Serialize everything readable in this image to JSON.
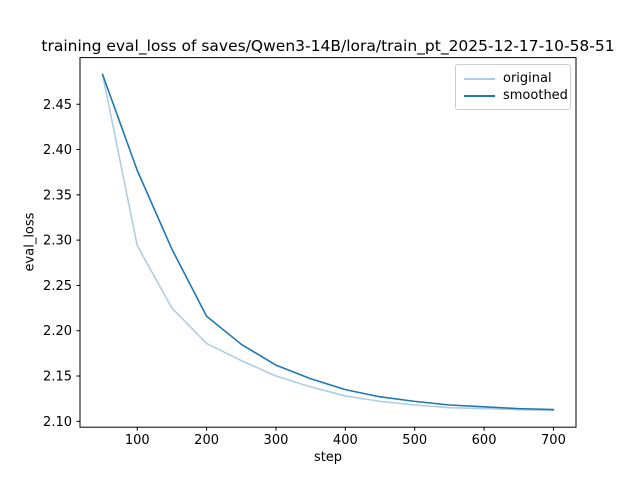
{
  "chart_data": {
    "type": "line",
    "title": "training eval_loss of saves/Qwen3-14B/lora/train_pt_2025-12-17-10-58-51",
    "xlabel": "step",
    "ylabel": "eval_loss",
    "x": [
      50,
      100,
      150,
      200,
      250,
      300,
      350,
      400,
      450,
      500,
      550,
      600,
      650,
      700
    ],
    "series": [
      {
        "name": "original",
        "color": "#aecde6",
        "values": [
          2.483,
          2.294,
          2.225,
          2.186,
          2.167,
          2.15,
          2.138,
          2.128,
          2.122,
          2.118,
          2.115,
          2.114,
          2.113,
          2.112
        ]
      },
      {
        "name": "smoothed",
        "color": "#1f77b4",
        "values": [
          2.483,
          2.377,
          2.29,
          2.216,
          2.185,
          2.162,
          2.147,
          2.135,
          2.127,
          2.122,
          2.118,
          2.116,
          2.114,
          2.113
        ]
      }
    ],
    "xlim": [
      17.5,
      732.5
    ],
    "ylim": [
      2.0935,
      2.5015
    ],
    "xticks": [
      100,
      200,
      300,
      400,
      500,
      600,
      700
    ],
    "yticks": [
      2.1,
      2.15,
      2.2,
      2.25,
      2.3,
      2.35,
      2.4,
      2.45
    ],
    "grid": false,
    "legend_position": "upper right",
    "axis_color": "#000000",
    "tick_label_color": "#000000"
  }
}
